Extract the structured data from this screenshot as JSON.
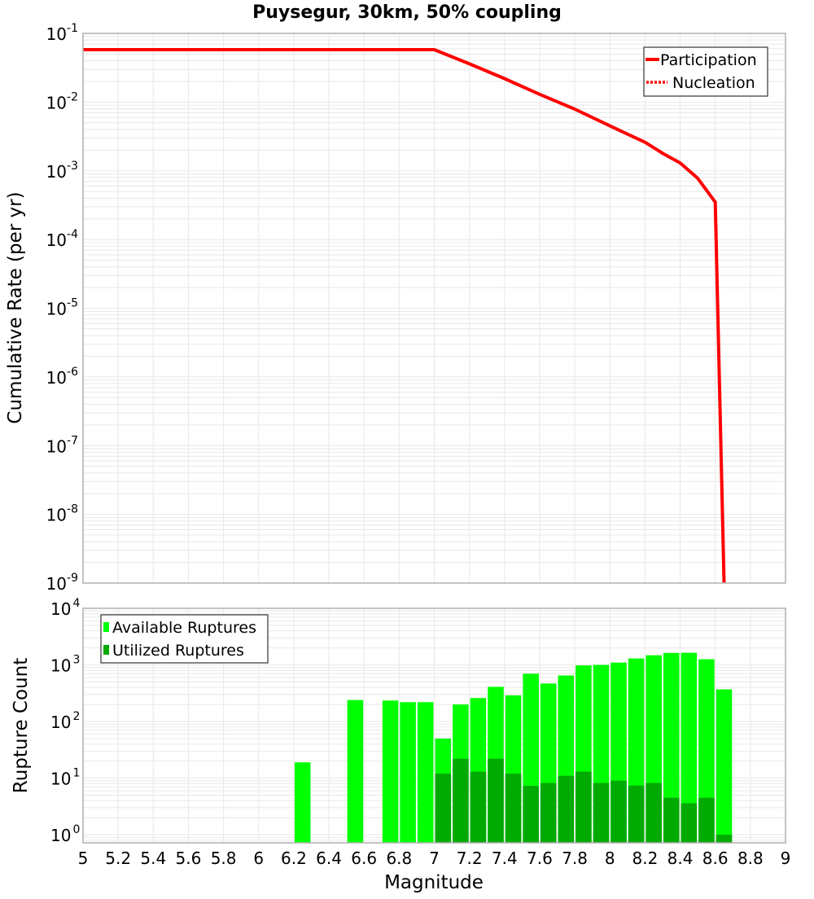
{
  "chart_data": [
    {
      "type": "line",
      "title": "Puysegur, 30km, 50% coupling",
      "xlabel": "",
      "ylabel": "Cumulative Rate (per yr)",
      "yscale": "log",
      "xlim": [
        5,
        9
      ],
      "ylim": [
        1e-09,
        0.1
      ],
      "grid": true,
      "legend_position": "upper-right",
      "y_ticks": [
        {
          "base": "10",
          "exp": "-1",
          "value": 0.1
        },
        {
          "base": "10",
          "exp": "-2",
          "value": 0.01
        },
        {
          "base": "10",
          "exp": "-3",
          "value": 0.001
        },
        {
          "base": "10",
          "exp": "-4",
          "value": 0.0001
        },
        {
          "base": "10",
          "exp": "-5",
          "value": 1e-05
        },
        {
          "base": "10",
          "exp": "-6",
          "value": 1e-06
        },
        {
          "base": "10",
          "exp": "-7",
          "value": 1e-07
        },
        {
          "base": "10",
          "exp": "-8",
          "value": 1e-08
        },
        {
          "base": "10",
          "exp": "-9",
          "value": 1e-09
        }
      ],
      "series": [
        {
          "name": "Participation",
          "color": "#ff0000",
          "style": "solid",
          "x": [
            5.0,
            7.0,
            7.2,
            7.4,
            7.6,
            7.8,
            8.0,
            8.2,
            8.3,
            8.4,
            8.5,
            8.6,
            8.65
          ],
          "y": [
            0.058,
            0.058,
            0.036,
            0.022,
            0.013,
            0.0079,
            0.0045,
            0.0026,
            0.0018,
            0.0013,
            0.00078,
            0.00035,
            1e-09
          ]
        },
        {
          "name": "Nucleation",
          "color": "#ff0000",
          "style": "dotted",
          "x": [
            5.0,
            7.0,
            7.2,
            7.4,
            7.6,
            7.8,
            8.0,
            8.2,
            8.3,
            8.4,
            8.5,
            8.6,
            8.65
          ],
          "y": [
            0.058,
            0.058,
            0.036,
            0.022,
            0.013,
            0.0079,
            0.0045,
            0.0026,
            0.0018,
            0.0013,
            0.00078,
            0.00035,
            1e-09
          ]
        }
      ]
    },
    {
      "type": "bar",
      "title": "",
      "xlabel": "Magnitude",
      "ylabel": "Rupture Count",
      "yscale": "log",
      "xlim": [
        5,
        9
      ],
      "ylim": [
        0.72,
        10000
      ],
      "grid": true,
      "legend_position": "upper-left",
      "bin_width": 0.1,
      "x_ticks": [
        "5",
        "5.2",
        "5.4",
        "5.6",
        "5.8",
        "6",
        "6.2",
        "6.4",
        "6.6",
        "6.8",
        "7",
        "7.2",
        "7.4",
        "7.6",
        "7.8",
        "8",
        "8.2",
        "8.4",
        "8.6",
        "8.8",
        "9"
      ],
      "y_ticks": [
        {
          "base": "10",
          "exp": "4",
          "value": 10000
        },
        {
          "base": "10",
          "exp": "3",
          "value": 1000
        },
        {
          "base": "10",
          "exp": "2",
          "value": 100
        },
        {
          "base": "10",
          "exp": "1",
          "value": 10
        },
        {
          "base": "10",
          "exp": "0",
          "value": 1
        }
      ],
      "categories": [
        6.25,
        6.55,
        6.75,
        6.85,
        6.95,
        7.05,
        7.15,
        7.25,
        7.35,
        7.45,
        7.55,
        7.65,
        7.75,
        7.85,
        7.95,
        8.05,
        8.15,
        8.25,
        8.35,
        8.45,
        8.55,
        8.65
      ],
      "series": [
        {
          "name": "Available Ruptures",
          "color": "#00ff00",
          "values": [
            19,
            240,
            235,
            220,
            220,
            50,
            200,
            260,
            410,
            290,
            700,
            470,
            650,
            980,
            1000,
            1100,
            1300,
            1480,
            1630,
            1640,
            1260,
            370
          ]
        },
        {
          "name": "Utilized Ruptures",
          "color": "#00aa00",
          "values": [
            0,
            0,
            0,
            0,
            0,
            12,
            22,
            13,
            22,
            12,
            7.3,
            8.2,
            11,
            13,
            8.2,
            9,
            7.4,
            8.2,
            4.5,
            3.6,
            4.5,
            1
          ]
        }
      ]
    }
  ],
  "labels": {
    "title": "Puysegur, 30km, 50% coupling",
    "top_ylabel": "Cumulative Rate (per yr)",
    "bottom_ylabel": "Rupture Count",
    "xlabel": "Magnitude",
    "legend_top": [
      "Participation",
      "Nucleation"
    ],
    "legend_bottom": [
      "Available Ruptures",
      "Utilized Ruptures"
    ]
  },
  "colors": {
    "line": "#ff0000",
    "available": "#00ff00",
    "utilized": "#00aa00",
    "grid": "#e8e8e8",
    "frame": "#b0b0b0"
  }
}
